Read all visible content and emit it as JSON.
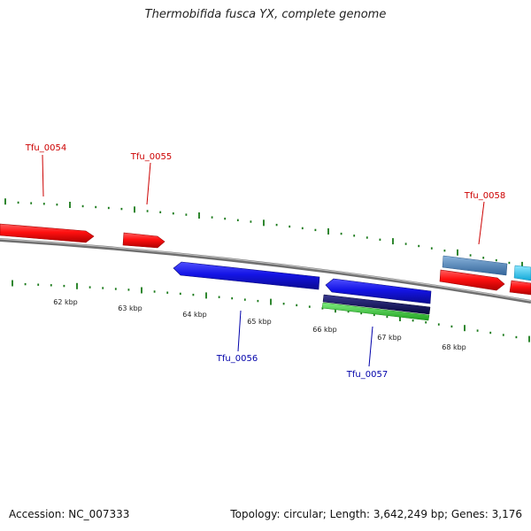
{
  "title": "Thermobifida fusca YX, complete genome",
  "footer": {
    "accession": "Accession: NC_007333",
    "summary": "Topology: circular; Length: 3,642,249 bp; Genes: 3,176"
  },
  "scale_labels": [
    "62 kbp",
    "63 kbp",
    "64 kbp",
    "65 kbp",
    "66 kbp",
    "67 kbp",
    "68 kbp"
  ],
  "genes": [
    {
      "label": "Tfu_0054",
      "color": "#cc0000"
    },
    {
      "label": "Tfu_0055",
      "color": "#cc0000"
    },
    {
      "label": "Tfu_0056",
      "color": "#0000aa"
    },
    {
      "label": "Tfu_0057",
      "color": "#0000aa"
    },
    {
      "label": "Tfu_0058",
      "color": "#cc0000"
    }
  ],
  "colors": {
    "forward_cds": "#ff1a1a",
    "reverse_cds": "#1a1aee",
    "backbone": "#8a8a8a",
    "tick": "#1a7a1a",
    "dark_navy": "#101060",
    "green_feature": "#33cc33",
    "steel_blue": "#4a7fb5",
    "cyan": "#22c8f0"
  }
}
